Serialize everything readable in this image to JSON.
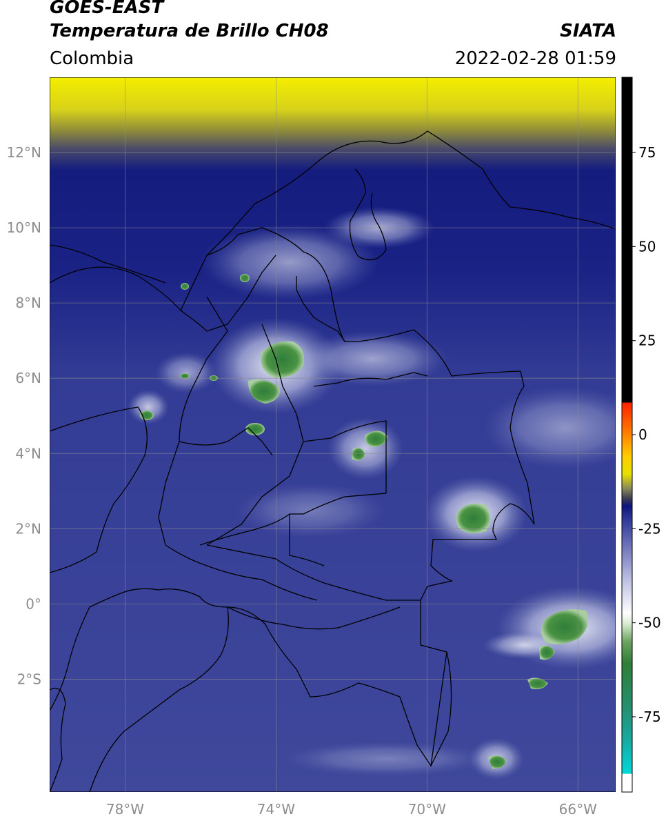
{
  "header": {
    "satellite": "GOES-EAST",
    "product": "Temperatura de Brillo CH08",
    "org": "SIATA",
    "region": "Colombia",
    "timestamp": "2022-02-28 01:59"
  },
  "map": {
    "lon_ticks": [
      "78°W",
      "74°W",
      "70°W",
      "66°W"
    ],
    "lat_ticks": [
      "12°N",
      "10°N",
      "8°N",
      "6°N",
      "4°N",
      "2°N",
      "0°",
      "2°S"
    ],
    "lon_range": [
      -80,
      -65
    ],
    "lat_range": [
      -5,
      14
    ],
    "palette": {
      "background": "#3c4699",
      "ocean_dark": "#141c7e",
      "dry_yellow": "#f4ee00",
      "cloud_white": "#e9ecf6",
      "cold_green": "#3f8a3c",
      "border": "#000000",
      "grid": "#8c8c8c"
    }
  },
  "colorbar": {
    "ticks": [
      "75",
      "50",
      "25",
      "0",
      "-25",
      "-50",
      "-75"
    ],
    "tick_values": [
      75,
      50,
      25,
      0,
      -25,
      -50,
      -75
    ],
    "range": [
      -95,
      95
    ]
  }
}
